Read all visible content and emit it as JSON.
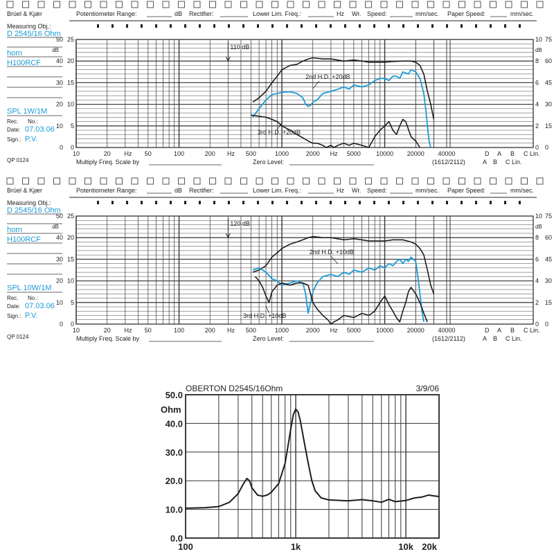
{
  "paper": {
    "brand": "Brüel & Kjær",
    "potentiometer_label": "Potentiometer Range:",
    "db": "dB",
    "rectifier_label": "Rectifier:",
    "lower_lim_label": "Lower Lim. Freq.:",
    "hz": "Hz",
    "wr_label": "Wr.",
    "speed_label": "Speed:",
    "mm_sec": "mm/sec.",
    "paper_speed_label": "Paper Speed:",
    "measuring_label": "Measuring Obj.:",
    "rec_no_label": "Rec.",
    "no_label": "No.:",
    "date_label": "Date:",
    "sign_label": "Sign.:",
    "qp_label": "QP 0124",
    "multiply_label": "Multiply Freq. Scale by",
    "zero_level_label": "Zero Level:",
    "paper_code": "(1612/2112)",
    "freq_ticks": [
      "10",
      "20",
      "Hz",
      "50",
      "100",
      "200",
      "Hz",
      "500",
      "1000",
      "2000",
      "Hz",
      "5000",
      "10000",
      "20000",
      "40000"
    ],
    "right_codes_top": [
      "D",
      "A",
      "B",
      "C Lin."
    ],
    "right_codes_bottom": [
      "A",
      "B",
      "C Lin."
    ],
    "left_db_scale": [
      "50",
      "40",
      "30",
      "20",
      "10",
      "0"
    ],
    "left_scale_b": [
      "25",
      "20",
      "15",
      "10",
      "5",
      "0"
    ],
    "right_scale_a": [
      "10",
      "8",
      "6",
      "4",
      "2",
      "0"
    ],
    "right_scale_b": [
      "75",
      "60",
      "45",
      "30",
      "15",
      "0"
    ],
    "dB_marker": "dB"
  },
  "chart_data": [
    {
      "type": "line",
      "object": "D 2545/16 Ohm",
      "object2": "horn",
      "object3": "H100RCF",
      "condition": "SPL 1W/1M",
      "date": "07.03.06",
      "sign": "P.V.",
      "range_label": "110 dB",
      "x_scale": "log",
      "xlim": [
        10,
        40000
      ],
      "ylim": [
        0,
        50
      ],
      "ylabel": "dB",
      "annotations": [
        "2nd H.D. +20dB",
        "3rd H.D. +20dB"
      ],
      "series": [
        {
          "color": "#1c1c1c",
          "points": [
            [
              520,
              21
            ],
            [
              600,
              23
            ],
            [
              700,
              26
            ],
            [
              800,
              30
            ],
            [
              900,
              33
            ],
            [
              1000,
              36
            ],
            [
              1200,
              38
            ],
            [
              1400,
              38.5
            ],
            [
              1600,
              40
            ],
            [
              1800,
              41
            ],
            [
              2000,
              41.5
            ],
            [
              2500,
              41
            ],
            [
              3000,
              41
            ],
            [
              4000,
              40
            ],
            [
              5000,
              40.5
            ],
            [
              6000,
              40
            ],
            [
              7000,
              39.5
            ],
            [
              8000,
              39.5
            ],
            [
              10000,
              39.5
            ],
            [
              12000,
              39.8
            ],
            [
              15000,
              40
            ],
            [
              18000,
              40
            ],
            [
              20000,
              39.5
            ],
            [
              22000,
              38
            ],
            [
              24000,
              34
            ],
            [
              26000,
              26
            ],
            [
              28000,
              20
            ],
            [
              30000,
              13
            ]
          ]
        },
        {
          "color": "#1a9ad6",
          "points": [
            [
              520,
              14
            ],
            [
              600,
              18
            ],
            [
              700,
              22
            ],
            [
              800,
              24.5
            ],
            [
              900,
              25
            ],
            [
              1000,
              25.5
            ],
            [
              1200,
              25.8
            ],
            [
              1400,
              25
            ],
            [
              1600,
              23
            ],
            [
              1700,
              20
            ],
            [
              1800,
              19
            ],
            [
              1900,
              19.5
            ],
            [
              2000,
              21
            ],
            [
              2200,
              22
            ],
            [
              2500,
              25
            ],
            [
              3000,
              26
            ],
            [
              3500,
              27
            ],
            [
              4000,
              28
            ],
            [
              4500,
              27
            ],
            [
              5000,
              29
            ],
            [
              6000,
              28
            ],
            [
              7000,
              29
            ],
            [
              8000,
              31
            ],
            [
              9000,
              32
            ],
            [
              10000,
              32
            ],
            [
              11000,
              31
            ],
            [
              12000,
              33
            ],
            [
              13000,
              33
            ],
            [
              14000,
              32
            ],
            [
              15000,
              35
            ],
            [
              17000,
              34
            ],
            [
              18000,
              36
            ],
            [
              20000,
              35
            ],
            [
              22000,
              32
            ],
            [
              24000,
              25
            ],
            [
              25000,
              18
            ],
            [
              26000,
              10
            ],
            [
              27000,
              3
            ],
            [
              28000,
              0
            ]
          ]
        },
        {
          "color": "#1c1c1c",
          "points": [
            [
              500,
              15
            ],
            [
              700,
              14
            ],
            [
              800,
              13
            ],
            [
              900,
              12
            ],
            [
              1000,
              10
            ],
            [
              1200,
              8
            ],
            [
              1400,
              6
            ],
            [
              1600,
              4.5
            ],
            [
              1800,
              3
            ],
            [
              2000,
              2
            ],
            [
              2200,
              2
            ],
            [
              2500,
              1
            ],
            [
              2700,
              0
            ],
            [
              3000,
              1
            ],
            [
              3200,
              0
            ],
            [
              3500,
              1
            ],
            [
              4000,
              2
            ],
            [
              4500,
              1
            ],
            [
              5000,
              2
            ],
            [
              6000,
              1
            ],
            [
              7000,
              0
            ],
            [
              8000,
              5
            ],
            [
              9000,
              8
            ],
            [
              10000,
              10
            ],
            [
              11000,
              12
            ],
            [
              12000,
              8
            ],
            [
              13000,
              6
            ],
            [
              14000,
              10
            ],
            [
              15000,
              13
            ],
            [
              16000,
              12
            ],
            [
              18000,
              5
            ],
            [
              20000,
              3
            ],
            [
              22000,
              0
            ]
          ]
        }
      ]
    },
    {
      "type": "line",
      "object": "D 2545/16 Ohm",
      "object2": "horn",
      "object3": "H100RCF",
      "condition": "SPL 10W/1M",
      "date": "07.03.06",
      "sign": "P.V.",
      "range_label": "120 dB",
      "x_scale": "log",
      "xlim": [
        10,
        40000
      ],
      "ylim": [
        0,
        50
      ],
      "ylabel": "dB",
      "annotations": [
        "2nd H.D. +10dB",
        "3rd H.D. +10dB"
      ],
      "series": [
        {
          "color": "#1c1c1c",
          "points": [
            [
              520,
              24
            ],
            [
              600,
              25
            ],
            [
              700,
              27
            ],
            [
              800,
              31
            ],
            [
              900,
              33
            ],
            [
              1000,
              35
            ],
            [
              1200,
              37
            ],
            [
              1400,
              38
            ],
            [
              1600,
              39
            ],
            [
              1800,
              40
            ],
            [
              2000,
              40.5
            ],
            [
              2500,
              40
            ],
            [
              3000,
              40
            ],
            [
              4000,
              39
            ],
            [
              5000,
              39.5
            ],
            [
              6000,
              39
            ],
            [
              7000,
              38.5
            ],
            [
              8000,
              38.5
            ],
            [
              10000,
              38.5
            ],
            [
              12000,
              39
            ],
            [
              15000,
              39
            ],
            [
              18000,
              38
            ],
            [
              20000,
              37
            ],
            [
              22000,
              35
            ],
            [
              24000,
              32
            ],
            [
              26000,
              25
            ],
            [
              28000,
              18
            ],
            [
              30000,
              14
            ]
          ]
        },
        {
          "color": "#1a9ad6",
          "points": [
            [
              520,
              25
            ],
            [
              600,
              26
            ],
            [
              650,
              25
            ],
            [
              700,
              24
            ],
            [
              800,
              21
            ],
            [
              900,
              20
            ],
            [
              1000,
              18
            ],
            [
              1200,
              19
            ],
            [
              1400,
              20
            ],
            [
              1600,
              19
            ],
            [
              1700,
              14
            ],
            [
              1800,
              5
            ],
            [
              1900,
              10
            ],
            [
              2000,
              15
            ],
            [
              2200,
              19
            ],
            [
              2500,
              22
            ],
            [
              3000,
              23
            ],
            [
              3500,
              22
            ],
            [
              4000,
              24
            ],
            [
              4500,
              23
            ],
            [
              5000,
              25
            ],
            [
              6000,
              24
            ],
            [
              7000,
              26
            ],
            [
              8000,
              25
            ],
            [
              9000,
              27
            ],
            [
              10000,
              26
            ],
            [
              11000,
              28
            ],
            [
              12000,
              27
            ],
            [
              13000,
              29
            ],
            [
              14000,
              30
            ],
            [
              15000,
              28
            ],
            [
              16000,
              30
            ],
            [
              17000,
              29
            ],
            [
              18000,
              31
            ],
            [
              20000,
              29
            ],
            [
              21000,
              22
            ],
            [
              22000,
              14
            ],
            [
              23000,
              6
            ],
            [
              24000,
              1
            ]
          ]
        },
        {
          "color": "#1c1c1c",
          "points": [
            [
              550,
              22
            ],
            [
              600,
              20
            ],
            [
              650,
              17
            ],
            [
              700,
              13
            ],
            [
              750,
              10
            ],
            [
              800,
              15
            ],
            [
              900,
              18
            ],
            [
              1000,
              19
            ],
            [
              1200,
              18
            ],
            [
              1400,
              19
            ],
            [
              1600,
              19
            ],
            [
              1800,
              18
            ],
            [
              2000,
              10
            ],
            [
              2200,
              7
            ],
            [
              2500,
              4
            ],
            [
              2800,
              2
            ],
            [
              3000,
              0
            ],
            [
              3200,
              1
            ],
            [
              3500,
              2
            ],
            [
              4000,
              4
            ],
            [
              5000,
              3
            ],
            [
              6000,
              5
            ],
            [
              7000,
              4
            ],
            [
              8000,
              6
            ],
            [
              9000,
              10
            ],
            [
              10000,
              13
            ],
            [
              11000,
              9
            ],
            [
              12000,
              6
            ],
            [
              13000,
              3
            ],
            [
              14000,
              1
            ],
            [
              15000,
              6
            ],
            [
              16000,
              10
            ],
            [
              17000,
              15
            ],
            [
              18000,
              17
            ],
            [
              20000,
              14
            ],
            [
              22000,
              10
            ],
            [
              24000,
              5
            ],
            [
              26000,
              1
            ]
          ]
        }
      ]
    },
    {
      "type": "line",
      "title": "OBERTON D2545/16Ohm",
      "date": "3/9/06",
      "ylabel": "Ohm",
      "x_scale": "log",
      "xlim": [
        100,
        20000
      ],
      "ylim": [
        0,
        50
      ],
      "y_ticks": [
        "50.0",
        "40.0",
        "30.0",
        "20.0",
        "10.0",
        "0.0"
      ],
      "x_ticks": [
        "100",
        "1k",
        "10k",
        "20k"
      ],
      "series": [
        {
          "color": "#1c1c1c",
          "points": [
            [
              100,
              10.4
            ],
            [
              150,
              10.6
            ],
            [
              200,
              11
            ],
            [
              250,
              12.5
            ],
            [
              300,
              15.5
            ],
            [
              330,
              18.5
            ],
            [
              360,
              20.8
            ],
            [
              380,
              20
            ],
            [
              400,
              17.5
            ],
            [
              450,
              15
            ],
            [
              500,
              14.6
            ],
            [
              550,
              15
            ],
            [
              600,
              16
            ],
            [
              700,
              19
            ],
            [
              800,
              26
            ],
            [
              850,
              32
            ],
            [
              900,
              38
            ],
            [
              950,
              43
            ],
            [
              1000,
              45
            ],
            [
              1050,
              44
            ],
            [
              1100,
              41
            ],
            [
              1200,
              33
            ],
            [
              1300,
              26
            ],
            [
              1400,
              20
            ],
            [
              1500,
              16.5
            ],
            [
              1700,
              14
            ],
            [
              2000,
              13.3
            ],
            [
              3000,
              13
            ],
            [
              4000,
              13.4
            ],
            [
              5000,
              13
            ],
            [
              6000,
              12.5
            ],
            [
              7000,
              13.5
            ],
            [
              8000,
              12.7
            ],
            [
              10000,
              13.1
            ],
            [
              12000,
              14
            ],
            [
              14000,
              14.3
            ],
            [
              16000,
              15
            ],
            [
              18000,
              14.7
            ],
            [
              20000,
              14.5
            ]
          ]
        }
      ]
    }
  ]
}
